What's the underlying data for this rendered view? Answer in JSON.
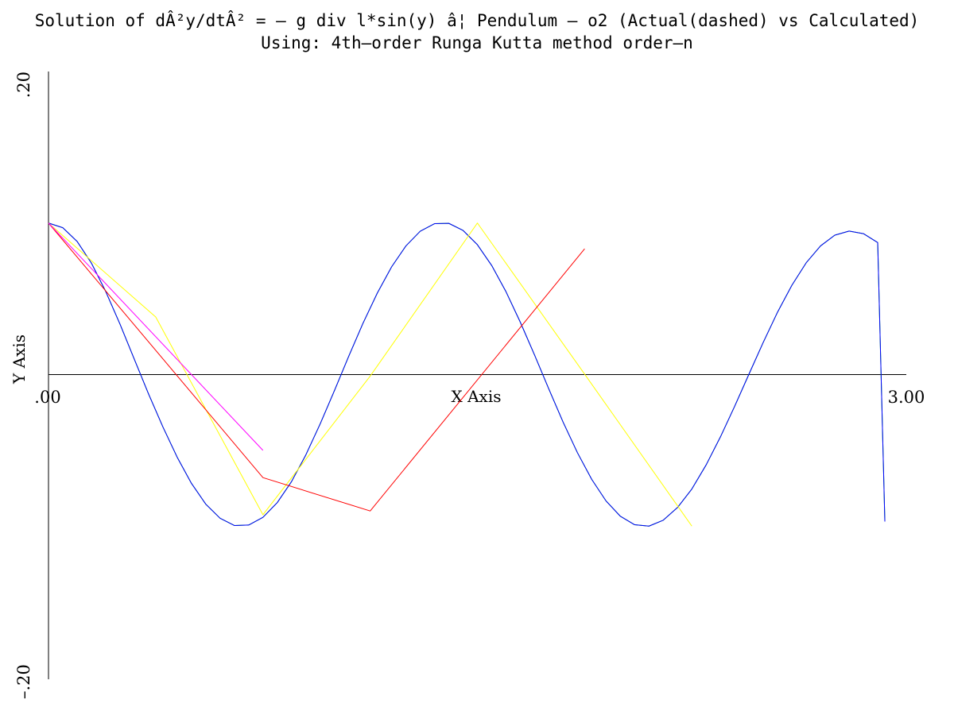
{
  "chart_data": {
    "type": "line",
    "title": "Solution of dÂ²y/dtÂ² = – g div l*sin(y) â¦ Pendulum – o2 (Actual(dashed) vs Calculated)",
    "subtitle": "Using: 4th–order Runga Kutta method order–n",
    "xlabel": "X Axis",
    "ylabel": "Y Axis",
    "xlim": [
      0,
      3
    ],
    "ylim": [
      -0.2,
      0.2
    ],
    "x_tick_labels": [
      ".00",
      "3.00"
    ],
    "y_tick_labels": [
      ".20",
      "–.20"
    ],
    "grid": false,
    "legend": "none",
    "series": [
      {
        "color": "#00c000",
        "x": [
          0,
          0.05,
          0.1,
          0.15,
          0.2,
          0.25,
          0.3,
          0.35,
          0.4,
          0.45,
          0.5,
          0.55,
          0.6,
          0.65,
          0.7,
          0.75,
          0.8,
          0.85,
          0.9,
          0.95,
          1.0,
          1.05,
          1.1,
          1.15,
          1.2,
          1.25,
          1.3,
          1.35,
          1.4,
          1.45,
          1.5,
          1.55,
          1.6,
          1.65,
          1.7,
          1.75,
          1.8,
          1.85,
          1.9,
          1.95,
          2.0,
          2.05,
          2.1,
          2.15,
          2.2,
          2.25,
          2.3,
          2.35,
          2.4,
          2.45,
          2.5,
          2.55,
          2.6,
          2.65,
          2.7,
          2.75,
          2.8,
          2.85,
          2.9,
          2.925
        ],
        "y": [
          0.1,
          0.0969,
          0.0879,
          0.0736,
          0.0549,
          0.0333,
          0.0102,
          -0.0128,
          -0.0345,
          -0.0545,
          -0.0718,
          -0.0855,
          -0.0948,
          -0.0996,
          -0.0993,
          -0.0942,
          -0.0845,
          -0.0706,
          -0.053,
          -0.0326,
          -0.0106,
          0.0121,
          0.0339,
          0.0538,
          0.0711,
          0.0849,
          0.0946,
          0.0996,
          0.0998,
          0.0951,
          0.0857,
          0.072,
          0.0547,
          0.0346,
          0.0129,
          -0.0096,
          -0.0315,
          -0.0516,
          -0.0692,
          -0.0834,
          -0.0935,
          -0.0991,
          -0.1,
          -0.0961,
          -0.0877,
          -0.0755,
          -0.0596,
          -0.0411,
          -0.0208,
          0.0004,
          0.0214,
          0.0413,
          0.059,
          0.0738,
          0.0849,
          0.092,
          0.0947,
          0.093,
          0.0871,
          -0.097
        ]
      },
      {
        "color": "#0000ff",
        "x": [
          0,
          0.05,
          0.1,
          0.15,
          0.2,
          0.25,
          0.3,
          0.35,
          0.4,
          0.45,
          0.5,
          0.55,
          0.6,
          0.65,
          0.7,
          0.75,
          0.8,
          0.85,
          0.9,
          0.95,
          1.0,
          1.05,
          1.1,
          1.15,
          1.2,
          1.25,
          1.3,
          1.35,
          1.4,
          1.45,
          1.5,
          1.55,
          1.6,
          1.65,
          1.7,
          1.75,
          1.8,
          1.85,
          1.9,
          1.95,
          2.0,
          2.05,
          2.1,
          2.15,
          2.2,
          2.25,
          2.3,
          2.35,
          2.4,
          2.45,
          2.5,
          2.55,
          2.6,
          2.65,
          2.7,
          2.75,
          2.8,
          2.85,
          2.9,
          2.925
        ],
        "y": [
          0.1,
          0.0969,
          0.0879,
          0.0736,
          0.0549,
          0.0333,
          0.0102,
          -0.0128,
          -0.0345,
          -0.0545,
          -0.0718,
          -0.0855,
          -0.0948,
          -0.0996,
          -0.0993,
          -0.0942,
          -0.0845,
          -0.0706,
          -0.053,
          -0.0326,
          -0.0106,
          0.0121,
          0.0339,
          0.0538,
          0.0711,
          0.0849,
          0.0946,
          0.0996,
          0.0998,
          0.0951,
          0.0857,
          0.072,
          0.0547,
          0.0346,
          0.0129,
          -0.0096,
          -0.0315,
          -0.0516,
          -0.0692,
          -0.0834,
          -0.0935,
          -0.0991,
          -0.1,
          -0.0961,
          -0.0877,
          -0.0755,
          -0.0596,
          -0.0411,
          -0.0208,
          0.0004,
          0.0214,
          0.0413,
          0.059,
          0.0738,
          0.0849,
          0.092,
          0.0947,
          0.093,
          0.0871,
          -0.097
        ]
      },
      {
        "color": "#ffff00",
        "x": [
          0,
          0.375,
          0.75,
          1.125,
          1.5,
          1.875,
          2.25
        ],
        "y": [
          0.1,
          0.038,
          -0.0925,
          -0.001,
          0.1,
          0.0003,
          -0.1
        ]
      },
      {
        "color": "#ff0000",
        "x": [
          0,
          0.75,
          1.125,
          1.875
        ],
        "y": [
          0.1,
          -0.068,
          -0.09,
          0.083
        ]
      },
      {
        "color": "#ff00ff",
        "x": [
          0,
          0.75
        ],
        "y": [
          0.1,
          -0.05
        ]
      }
    ]
  }
}
